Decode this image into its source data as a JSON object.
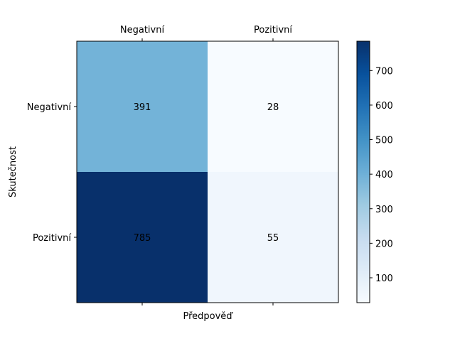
{
  "chart_data": {
    "type": "heatmap",
    "title": "",
    "xlabel": "Předpověď",
    "ylabel": "Skutečnost",
    "x_categories": [
      "Negativní",
      "Pozitivní"
    ],
    "y_categories": [
      "Negativní",
      "Pozitivní"
    ],
    "x_tick_position": "top",
    "values": [
      [
        391,
        28
      ],
      [
        785,
        55
      ]
    ],
    "colormap": "Blues",
    "colorbar": {
      "range": [
        28,
        785
      ],
      "ticks": [
        100,
        200,
        300,
        400,
        500,
        600,
        700
      ],
      "tick_labels": [
        "100",
        "200",
        "300",
        "400",
        "500",
        "600",
        "700"
      ]
    },
    "grid": false
  }
}
